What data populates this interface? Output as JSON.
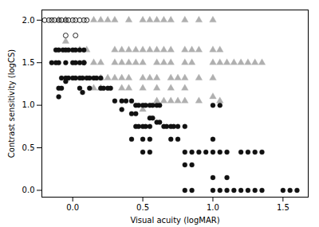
{
  "chart_data": {
    "type": "scatter",
    "xlabel": "Visual acuity (logMAR)",
    "ylabel": "Contrast sensitivity (logCS)",
    "xlim": [
      -0.22,
      1.68
    ],
    "ylim": [
      -0.08,
      2.12
    ],
    "xticks": [
      {
        "value": 0,
        "label": "0.0"
      },
      {
        "value": 0.5,
        "label": "0.5"
      },
      {
        "value": 1.0,
        "label": "1.0"
      },
      {
        "value": 1.5,
        "label": "1.5"
      }
    ],
    "yticks": [
      {
        "value": 0,
        "label": "0.0"
      },
      {
        "value": 0.5,
        "label": "0.5"
      },
      {
        "value": 1.0,
        "label": "1.0"
      },
      {
        "value": 1.5,
        "label": "1.5"
      },
      {
        "value": 2.0,
        "label": "2.0"
      }
    ],
    "grid": false,
    "series": [
      {
        "color": "#b0b0b0",
        "marker": "triangle",
        "x": [
          -0.1,
          -0.05,
          0.15,
          0.2,
          0.25,
          0.3,
          0.4,
          0.5,
          0.55,
          0.6,
          0.65,
          0.7,
          0.8,
          0.9,
          1.0,
          -0.05,
          0.05,
          0.1,
          0.3,
          0.35,
          0.4,
          0.45,
          0.5,
          0.55,
          0.6,
          0.65,
          0.7,
          0.8,
          0.85,
          0.9,
          1.0,
          1.05,
          0.15,
          0.2,
          0.3,
          0.35,
          0.4,
          0.45,
          0.5,
          0.6,
          0.65,
          0.7,
          0.8,
          0.85,
          1.0,
          1.05,
          1.1,
          1.15,
          1.2,
          1.25,
          1.3,
          1.35,
          0.2,
          0.25,
          0.3,
          0.35,
          0.4,
          0.5,
          0.55,
          0.6,
          0.7,
          0.75,
          0.8,
          0.9,
          1.0,
          0.15,
          0.2,
          0.35,
          0.4,
          0.5,
          0.6,
          0.7,
          0.8,
          1.0,
          1.05,
          0.5,
          0.6,
          0.65,
          0.7,
          0.75,
          0.8,
          0.9
        ],
        "values": [
          2.0,
          2.0,
          2.0,
          2.0,
          2.0,
          2.0,
          2.0,
          2.0,
          2.0,
          2.0,
          2.0,
          2.0,
          2.0,
          2.0,
          2.0,
          1.75,
          1.65,
          1.65,
          1.65,
          1.65,
          1.65,
          1.65,
          1.65,
          1.65,
          1.65,
          1.65,
          1.65,
          1.65,
          1.65,
          1.65,
          1.65,
          1.65,
          1.5,
          1.5,
          1.5,
          1.5,
          1.5,
          1.5,
          1.5,
          1.5,
          1.5,
          1.5,
          1.5,
          1.5,
          1.5,
          1.5,
          1.5,
          1.5,
          1.5,
          1.5,
          1.5,
          1.5,
          1.32,
          1.32,
          1.32,
          1.32,
          1.32,
          1.32,
          1.32,
          1.32,
          1.32,
          1.32,
          1.32,
          1.32,
          1.32,
          1.2,
          1.2,
          1.2,
          1.2,
          1.2,
          1.2,
          1.2,
          1.2,
          1.1,
          1.05,
          0.95,
          1.05,
          1.05,
          1.05,
          1.05,
          1.05,
          1.05
        ]
      },
      {
        "color": "#111111",
        "marker": "circle",
        "x": [
          -0.12,
          -0.1,
          -0.07,
          -0.05,
          -0.03,
          0.0,
          0.02,
          0.05,
          0.08,
          -0.15,
          -0.12,
          -0.1,
          -0.05,
          0.0,
          0.02,
          0.05,
          0.08,
          -0.08,
          -0.05,
          -0.03,
          0.0,
          0.02,
          0.05,
          0.07,
          0.1,
          0.12,
          0.15,
          0.17,
          0.2,
          -0.1,
          -0.08,
          0.05,
          0.12,
          0.2,
          0.22,
          0.25,
          0.27,
          -0.1,
          -0.05,
          0.07,
          0.3,
          0.35,
          0.38,
          0.42,
          0.45,
          0.47,
          0.5,
          0.52,
          0.55,
          0.57,
          0.6,
          0.62,
          0.35,
          0.42,
          0.45,
          0.55,
          0.57,
          0.6,
          0.62,
          0.45,
          0.47,
          0.5,
          0.52,
          0.55,
          0.65,
          0.67,
          0.7,
          0.72,
          0.75,
          0.8,
          0.42,
          0.5,
          0.55,
          0.7,
          0.75,
          1.0,
          0.5,
          0.55,
          0.8,
          0.85,
          0.9,
          0.95,
          1.0,
          1.05,
          1.1,
          1.2,
          1.25,
          1.3,
          1.35,
          0.8,
          0.85,
          1.0,
          1.1,
          0.8,
          0.85,
          1.0,
          1.05,
          1.1,
          1.15,
          1.2,
          1.25,
          1.3,
          1.35,
          1.5,
          1.55,
          1.6,
          1.0,
          1.05
        ],
        "values": [
          1.65,
          1.65,
          1.65,
          1.65,
          1.65,
          1.65,
          1.65,
          1.65,
          1.65,
          1.5,
          1.5,
          1.5,
          1.5,
          1.5,
          1.5,
          1.5,
          1.5,
          1.32,
          1.32,
          1.32,
          1.32,
          1.32,
          1.32,
          1.32,
          1.32,
          1.32,
          1.32,
          1.32,
          1.32,
          1.2,
          1.2,
          1.2,
          1.2,
          1.2,
          1.2,
          1.2,
          1.2,
          1.1,
          1.28,
          1.15,
          1.05,
          1.05,
          1.05,
          1.05,
          1.0,
          1.0,
          1.0,
          1.0,
          1.0,
          1.0,
          1.0,
          1.0,
          0.95,
          0.9,
          0.9,
          0.85,
          0.85,
          0.8,
          0.8,
          0.75,
          0.75,
          0.75,
          0.75,
          0.75,
          0.75,
          0.75,
          0.75,
          0.75,
          0.75,
          0.75,
          0.6,
          0.6,
          0.6,
          0.6,
          0.6,
          0.6,
          0.45,
          0.45,
          0.45,
          0.45,
          0.45,
          0.45,
          0.45,
          0.45,
          0.45,
          0.45,
          0.45,
          0.45,
          0.45,
          0.3,
          0.3,
          0.15,
          0.15,
          0.0,
          0.0,
          0.0,
          0.0,
          0.0,
          0.0,
          0.0,
          0.0,
          0.0,
          0.0,
          0.0,
          0.0,
          0.0,
          1.0,
          1.0
        ]
      },
      {
        "color": "#222222",
        "marker": "open_circle",
        "x": [
          -0.2,
          -0.17,
          -0.15,
          -0.13,
          -0.1,
          -0.08,
          -0.05,
          -0.03,
          0.0,
          0.02,
          0.05,
          0.08,
          0.1,
          -0.05,
          0.02,
          0.08
        ],
        "values": [
          2.0,
          2.0,
          2.0,
          2.0,
          2.0,
          2.0,
          2.0,
          2.0,
          2.0,
          2.0,
          2.0,
          2.0,
          2.0,
          1.82,
          1.82,
          1.5
        ]
      }
    ]
  }
}
